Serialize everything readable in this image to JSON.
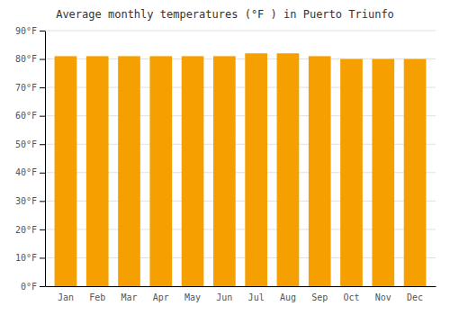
{
  "chart_data": {
    "type": "bar",
    "title": "Average monthly temperatures (°F ) in Puerto Triunfo",
    "categories": [
      "Jan",
      "Feb",
      "Mar",
      "Apr",
      "May",
      "Jun",
      "Jul",
      "Aug",
      "Sep",
      "Oct",
      "Nov",
      "Dec"
    ],
    "values": [
      81,
      81,
      81,
      81,
      81,
      81,
      82,
      82,
      81,
      80,
      80,
      80
    ],
    "color": "#F5A000",
    "ylim": [
      0,
      90
    ],
    "yticks": [
      {
        "value": 0,
        "label": "0°F"
      },
      {
        "value": 10,
        "label": "10°F"
      },
      {
        "value": 20,
        "label": "20°F"
      },
      {
        "value": 30,
        "label": "30°F"
      },
      {
        "value": 40,
        "label": "40°F"
      },
      {
        "value": 50,
        "label": "50°F"
      },
      {
        "value": 60,
        "label": "60°F"
      },
      {
        "value": 70,
        "label": "70°F"
      },
      {
        "value": 80,
        "label": "80°F"
      },
      {
        "value": 90,
        "label": "90°F"
      }
    ],
    "grid": true
  }
}
